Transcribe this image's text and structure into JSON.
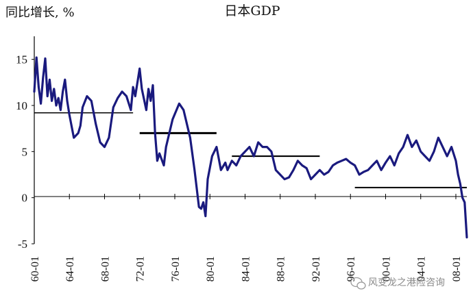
{
  "chart_data": {
    "type": "line",
    "title": "日本GDP",
    "ylabel": "同比增长, %",
    "xlabel": "",
    "ylim": [
      -5,
      17.5
    ],
    "yticks": [
      -5,
      0,
      5,
      10,
      15
    ],
    "xrange": [
      1960.0,
      2009.25
    ],
    "xticks": [
      "60-01",
      "64-01",
      "68-01",
      "72-01",
      "76-01",
      "80-01",
      "84-01",
      "88-01",
      "92-01",
      "96-01",
      "00-01",
      "04-01",
      "08-01"
    ],
    "grid": false,
    "legend": "none",
    "line_color": "#1a1a7e",
    "avg_color": "#000000",
    "series": [
      {
        "values": [
          [
            1960.0,
            11.5
          ],
          [
            1960.25,
            15.2
          ],
          [
            1960.5,
            12.0
          ],
          [
            1960.75,
            10.2
          ],
          [
            1961.0,
            13.0
          ],
          [
            1961.25,
            15.1
          ],
          [
            1961.5,
            11.0
          ],
          [
            1961.75,
            12.8
          ],
          [
            1962.0,
            10.5
          ],
          [
            1962.25,
            11.8
          ],
          [
            1962.5,
            10.0
          ],
          [
            1962.75,
            10.8
          ],
          [
            1963.0,
            9.5
          ],
          [
            1963.25,
            11.5
          ],
          [
            1963.5,
            12.8
          ],
          [
            1963.75,
            10.5
          ],
          [
            1964.0,
            9.0
          ],
          [
            1964.5,
            6.5
          ],
          [
            1965.0,
            7.0
          ],
          [
            1965.25,
            7.8
          ],
          [
            1965.5,
            9.8
          ],
          [
            1966.0,
            11.0
          ],
          [
            1966.5,
            10.5
          ],
          [
            1967.0,
            8.0
          ],
          [
            1967.5,
            6.0
          ],
          [
            1968.0,
            5.5
          ],
          [
            1968.5,
            6.5
          ],
          [
            1969.0,
            9.8
          ],
          [
            1969.5,
            10.8
          ],
          [
            1970.0,
            11.5
          ],
          [
            1970.5,
            11.0
          ],
          [
            1971.0,
            9.5
          ],
          [
            1971.25,
            12.0
          ],
          [
            1971.5,
            11.0
          ],
          [
            1972.0,
            14.0
          ],
          [
            1972.25,
            11.8
          ],
          [
            1972.75,
            9.5
          ],
          [
            1973.0,
            11.8
          ],
          [
            1973.25,
            10.5
          ],
          [
            1973.5,
            12.2
          ],
          [
            1973.75,
            7.0
          ],
          [
            1974.0,
            4.0
          ],
          [
            1974.25,
            4.8
          ],
          [
            1974.75,
            3.5
          ],
          [
            1975.0,
            5.5
          ],
          [
            1975.75,
            8.5
          ],
          [
            1976.5,
            10.2
          ],
          [
            1977.0,
            9.5
          ],
          [
            1977.75,
            6.5
          ],
          [
            1978.25,
            3.0
          ],
          [
            1978.75,
            -1.0
          ],
          [
            1979.0,
            -1.2
          ],
          [
            1979.25,
            -0.5
          ],
          [
            1979.5,
            -2.0
          ],
          [
            1979.75,
            2.0
          ],
          [
            1980.25,
            4.5
          ],
          [
            1980.75,
            5.5
          ],
          [
            1981.25,
            3.0
          ],
          [
            1981.75,
            3.8
          ],
          [
            1982.0,
            3.0
          ],
          [
            1982.5,
            4.0
          ],
          [
            1983.0,
            3.5
          ],
          [
            1983.5,
            4.5
          ],
          [
            1984.0,
            5.0
          ],
          [
            1984.5,
            5.5
          ],
          [
            1985.0,
            4.5
          ],
          [
            1985.5,
            6.0
          ],
          [
            1986.0,
            5.5
          ],
          [
            1986.5,
            5.5
          ],
          [
            1987.0,
            5.0
          ],
          [
            1987.5,
            3.0
          ],
          [
            1988.0,
            2.5
          ],
          [
            1988.5,
            2.0
          ],
          [
            1989.0,
            2.2
          ],
          [
            1989.5,
            3.0
          ],
          [
            1990.0,
            4.0
          ],
          [
            1990.5,
            3.5
          ],
          [
            1991.0,
            3.2
          ],
          [
            1991.5,
            2.0
          ],
          [
            1992.0,
            2.5
          ],
          [
            1992.5,
            3.0
          ],
          [
            1993.0,
            2.5
          ],
          [
            1993.5,
            2.8
          ],
          [
            1994.0,
            3.5
          ],
          [
            1994.5,
            3.8
          ],
          [
            1995.0,
            4.0
          ],
          [
            1995.5,
            4.2
          ],
          [
            1996.0,
            3.8
          ],
          [
            1996.5,
            3.5
          ],
          [
            1997.0,
            2.5
          ],
          [
            1997.5,
            2.8
          ],
          [
            1998.0,
            3.0
          ],
          [
            1998.5,
            3.5
          ],
          [
            1999.0,
            4.0
          ],
          [
            1999.5,
            3.0
          ],
          [
            2000.0,
            3.8
          ],
          [
            2000.5,
            4.5
          ],
          [
            2001.0,
            3.5
          ],
          [
            2001.5,
            4.8
          ],
          [
            2002.0,
            5.5
          ],
          [
            2002.5,
            6.8
          ],
          [
            2003.0,
            5.5
          ],
          [
            2003.5,
            6.2
          ],
          [
            2004.0,
            5.0
          ],
          [
            2004.5,
            4.5
          ],
          [
            2005.0,
            4.0
          ],
          [
            2005.5,
            5.0
          ],
          [
            2006.0,
            6.5
          ],
          [
            2006.5,
            5.5
          ],
          [
            2007.0,
            4.5
          ],
          [
            2007.5,
            5.5
          ],
          [
            2008.0,
            4.0
          ],
          [
            2008.25,
            2.5
          ],
          [
            2008.5,
            1.5
          ],
          [
            2008.75,
            0.0
          ],
          [
            2009.0,
            -0.5
          ],
          [
            2009.25,
            -4.3
          ]
        ]
      }
    ],
    "averages": [
      {
        "x": [
          1960.0,
          1971.25
        ],
        "y": 9.2
      },
      {
        "x": [
          1972.0,
          1980.75
        ],
        "y": 7.0
      },
      {
        "x": [
          1982.5,
          1992.5
        ],
        "y": 4.5
      },
      {
        "x": [
          1996.5,
          2009.25
        ],
        "y": 1.1
      }
    ]
  },
  "watermark": "风变龙之港险咨询"
}
